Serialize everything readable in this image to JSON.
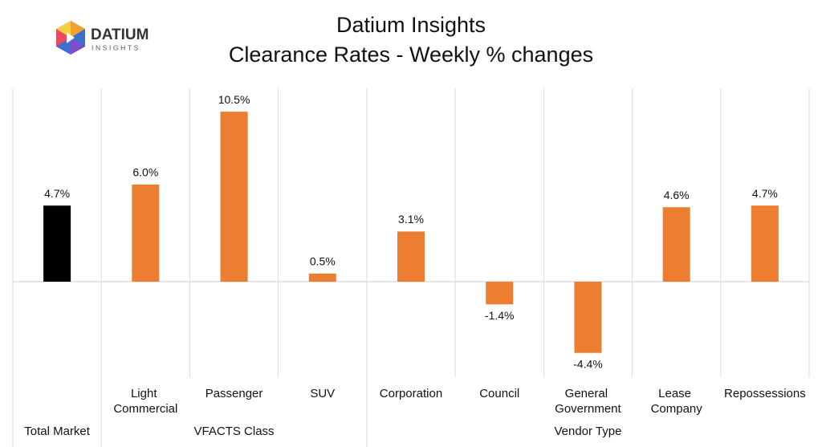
{
  "logo": {
    "name": "DATIUM",
    "tagline": "INSIGHTS"
  },
  "chart_data": {
    "type": "bar",
    "title": "Datium Insights",
    "subtitle": "Clearance Rates - Weekly % changes",
    "ylim": [
      -5.8,
      11.6
    ],
    "groups": [
      {
        "label": "Total Market",
        "color": "#000000",
        "categories": [
          null
        ],
        "values": [
          4.7
        ],
        "value_labels": [
          "4.7%"
        ]
      },
      {
        "label": "VFACTS Class",
        "color": "#ed7d31",
        "categories": [
          "Light Commercial",
          "Passenger",
          "SUV"
        ],
        "values": [
          6.0,
          10.5,
          0.5
        ],
        "value_labels": [
          "6.0%",
          "10.5%",
          "0.5%"
        ]
      },
      {
        "label": "Vendor Type",
        "color": "#ed7d31",
        "categories": [
          "Corporation",
          "Council",
          "General Government",
          "Lease Company",
          "Repossessions"
        ],
        "values": [
          3.1,
          -1.4,
          -4.4,
          4.6,
          4.7
        ],
        "value_labels": [
          "3.1%",
          "-1.4%",
          "-4.4%",
          "4.6%",
          "4.7%"
        ]
      }
    ]
  }
}
